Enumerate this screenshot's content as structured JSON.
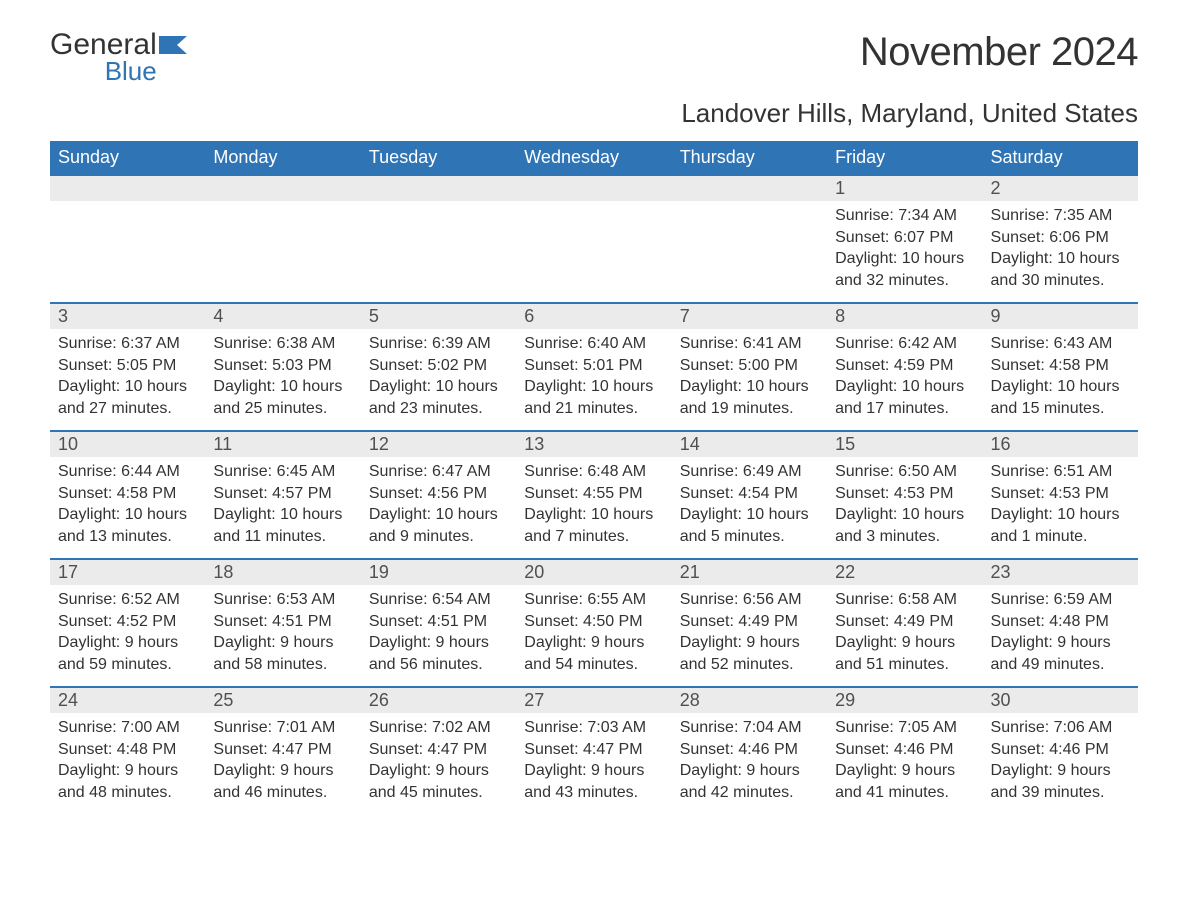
{
  "brand": {
    "line1": "General",
    "line2": "Blue",
    "accent_color": "#2f74b5"
  },
  "title": "November 2024",
  "location": "Landover Hills, Maryland, United States",
  "weekday_headers": [
    "Sunday",
    "Monday",
    "Tuesday",
    "Wednesday",
    "Thursday",
    "Friday",
    "Saturday"
  ],
  "colors": {
    "header_bg": "#2f74b5",
    "header_text": "#ffffff",
    "row_divider": "#2f74b5",
    "daynum_bg": "#ebebeb",
    "text": "#333333"
  },
  "typography": {
    "title_fontsize": 40,
    "location_fontsize": 26,
    "header_fontsize": 18,
    "daynum_fontsize": 18,
    "body_fontsize": 16
  },
  "layout": {
    "columns": 7,
    "rows": 5,
    "first_weekday_index": 5
  },
  "weeks": [
    [
      null,
      null,
      null,
      null,
      null,
      {
        "num": "1",
        "sunrise": "Sunrise: 7:34 AM",
        "sunset": "Sunset: 6:07 PM",
        "daylight": "Daylight: 10 hours and 32 minutes."
      },
      {
        "num": "2",
        "sunrise": "Sunrise: 7:35 AM",
        "sunset": "Sunset: 6:06 PM",
        "daylight": "Daylight: 10 hours and 30 minutes."
      }
    ],
    [
      {
        "num": "3",
        "sunrise": "Sunrise: 6:37 AM",
        "sunset": "Sunset: 5:05 PM",
        "daylight": "Daylight: 10 hours and 27 minutes."
      },
      {
        "num": "4",
        "sunrise": "Sunrise: 6:38 AM",
        "sunset": "Sunset: 5:03 PM",
        "daylight": "Daylight: 10 hours and 25 minutes."
      },
      {
        "num": "5",
        "sunrise": "Sunrise: 6:39 AM",
        "sunset": "Sunset: 5:02 PM",
        "daylight": "Daylight: 10 hours and 23 minutes."
      },
      {
        "num": "6",
        "sunrise": "Sunrise: 6:40 AM",
        "sunset": "Sunset: 5:01 PM",
        "daylight": "Daylight: 10 hours and 21 minutes."
      },
      {
        "num": "7",
        "sunrise": "Sunrise: 6:41 AM",
        "sunset": "Sunset: 5:00 PM",
        "daylight": "Daylight: 10 hours and 19 minutes."
      },
      {
        "num": "8",
        "sunrise": "Sunrise: 6:42 AM",
        "sunset": "Sunset: 4:59 PM",
        "daylight": "Daylight: 10 hours and 17 minutes."
      },
      {
        "num": "9",
        "sunrise": "Sunrise: 6:43 AM",
        "sunset": "Sunset: 4:58 PM",
        "daylight": "Daylight: 10 hours and 15 minutes."
      }
    ],
    [
      {
        "num": "10",
        "sunrise": "Sunrise: 6:44 AM",
        "sunset": "Sunset: 4:58 PM",
        "daylight": "Daylight: 10 hours and 13 minutes."
      },
      {
        "num": "11",
        "sunrise": "Sunrise: 6:45 AM",
        "sunset": "Sunset: 4:57 PM",
        "daylight": "Daylight: 10 hours and 11 minutes."
      },
      {
        "num": "12",
        "sunrise": "Sunrise: 6:47 AM",
        "sunset": "Sunset: 4:56 PM",
        "daylight": "Daylight: 10 hours and 9 minutes."
      },
      {
        "num": "13",
        "sunrise": "Sunrise: 6:48 AM",
        "sunset": "Sunset: 4:55 PM",
        "daylight": "Daylight: 10 hours and 7 minutes."
      },
      {
        "num": "14",
        "sunrise": "Sunrise: 6:49 AM",
        "sunset": "Sunset: 4:54 PM",
        "daylight": "Daylight: 10 hours and 5 minutes."
      },
      {
        "num": "15",
        "sunrise": "Sunrise: 6:50 AM",
        "sunset": "Sunset: 4:53 PM",
        "daylight": "Daylight: 10 hours and 3 minutes."
      },
      {
        "num": "16",
        "sunrise": "Sunrise: 6:51 AM",
        "sunset": "Sunset: 4:53 PM",
        "daylight": "Daylight: 10 hours and 1 minute."
      }
    ],
    [
      {
        "num": "17",
        "sunrise": "Sunrise: 6:52 AM",
        "sunset": "Sunset: 4:52 PM",
        "daylight": "Daylight: 9 hours and 59 minutes."
      },
      {
        "num": "18",
        "sunrise": "Sunrise: 6:53 AM",
        "sunset": "Sunset: 4:51 PM",
        "daylight": "Daylight: 9 hours and 58 minutes."
      },
      {
        "num": "19",
        "sunrise": "Sunrise: 6:54 AM",
        "sunset": "Sunset: 4:51 PM",
        "daylight": "Daylight: 9 hours and 56 minutes."
      },
      {
        "num": "20",
        "sunrise": "Sunrise: 6:55 AM",
        "sunset": "Sunset: 4:50 PM",
        "daylight": "Daylight: 9 hours and 54 minutes."
      },
      {
        "num": "21",
        "sunrise": "Sunrise: 6:56 AM",
        "sunset": "Sunset: 4:49 PM",
        "daylight": "Daylight: 9 hours and 52 minutes."
      },
      {
        "num": "22",
        "sunrise": "Sunrise: 6:58 AM",
        "sunset": "Sunset: 4:49 PM",
        "daylight": "Daylight: 9 hours and 51 minutes."
      },
      {
        "num": "23",
        "sunrise": "Sunrise: 6:59 AM",
        "sunset": "Sunset: 4:48 PM",
        "daylight": "Daylight: 9 hours and 49 minutes."
      }
    ],
    [
      {
        "num": "24",
        "sunrise": "Sunrise: 7:00 AM",
        "sunset": "Sunset: 4:48 PM",
        "daylight": "Daylight: 9 hours and 48 minutes."
      },
      {
        "num": "25",
        "sunrise": "Sunrise: 7:01 AM",
        "sunset": "Sunset: 4:47 PM",
        "daylight": "Daylight: 9 hours and 46 minutes."
      },
      {
        "num": "26",
        "sunrise": "Sunrise: 7:02 AM",
        "sunset": "Sunset: 4:47 PM",
        "daylight": "Daylight: 9 hours and 45 minutes."
      },
      {
        "num": "27",
        "sunrise": "Sunrise: 7:03 AM",
        "sunset": "Sunset: 4:47 PM",
        "daylight": "Daylight: 9 hours and 43 minutes."
      },
      {
        "num": "28",
        "sunrise": "Sunrise: 7:04 AM",
        "sunset": "Sunset: 4:46 PM",
        "daylight": "Daylight: 9 hours and 42 minutes."
      },
      {
        "num": "29",
        "sunrise": "Sunrise: 7:05 AM",
        "sunset": "Sunset: 4:46 PM",
        "daylight": "Daylight: 9 hours and 41 minutes."
      },
      {
        "num": "30",
        "sunrise": "Sunrise: 7:06 AM",
        "sunset": "Sunset: 4:46 PM",
        "daylight": "Daylight: 9 hours and 39 minutes."
      }
    ]
  ]
}
